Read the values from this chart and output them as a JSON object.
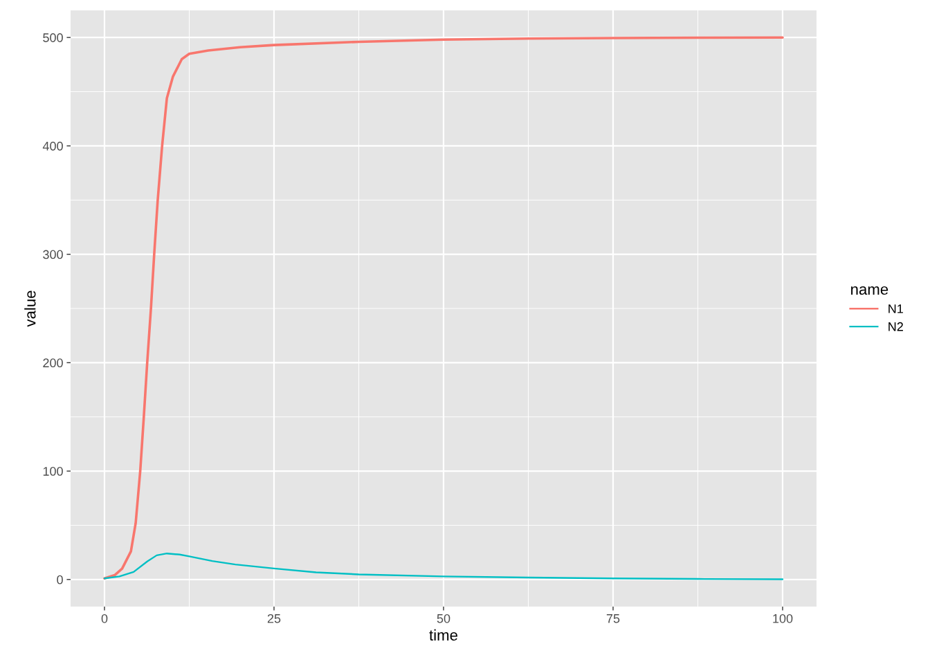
{
  "chart_data": {
    "type": "line",
    "xlabel": "time",
    "ylabel": "value",
    "legend_title": "name",
    "legend": "right",
    "grid": true,
    "xlim": [
      -5,
      105
    ],
    "ylim": [
      -25,
      525
    ],
    "xticks": [
      0,
      25,
      50,
      75,
      100
    ],
    "yticks": [
      0,
      100,
      200,
      300,
      400,
      500
    ],
    "series": [
      {
        "name": "N1",
        "color": "#f8766d",
        "x": [
          0,
          1.5,
          2.6,
          3.9,
          4.6,
          5.27,
          5.8,
          6.3,
          6.85,
          7.33,
          7.85,
          8.5,
          9.2,
          10.1,
          11.4,
          12.5,
          15.3,
          20,
          25,
          37.5,
          50,
          62.5,
          75,
          87.5,
          100
        ],
        "values": [
          1,
          4,
          10,
          26,
          52,
          100,
          150,
          200,
          250,
          300,
          350,
          400,
          444,
          464,
          480,
          485,
          488,
          491,
          493,
          496,
          498,
          499,
          499.5,
          499.8,
          500
        ]
      },
      {
        "name": "N2",
        "color": "#00bfc4",
        "x": [
          0,
          2.2,
          4.3,
          6.3,
          7.7,
          9.2,
          11.1,
          12.5,
          15.9,
          19.3,
          25,
          31.2,
          37.5,
          50,
          62.5,
          75,
          87.5,
          100
        ],
        "values": [
          1,
          2.8,
          7,
          16.6,
          22.3,
          24,
          23,
          21.3,
          17,
          13.8,
          10.2,
          6.6,
          4.7,
          2.8,
          1.8,
          1,
          0.5,
          0.2
        ]
      }
    ]
  }
}
